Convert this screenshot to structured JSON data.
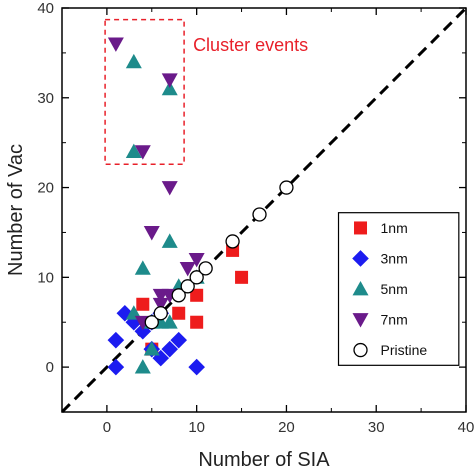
{
  "chart_data": {
    "type": "scatter",
    "xlabel": "Number of SIA",
    "ylabel": "Number of Vac",
    "xlim": [
      -5,
      40
    ],
    "ylim": [
      -5,
      40
    ],
    "xticks": [
      "0",
      "10",
      "20",
      "30",
      "40"
    ],
    "yticks": [
      "0",
      "10",
      "20",
      "30",
      "40"
    ],
    "grid": false,
    "legend_position": "right",
    "reference_line": {
      "type": "y=x",
      "style": "dashed",
      "color": "#000000"
    },
    "annotation": {
      "text": "Cluster events",
      "color": "#e8202a"
    },
    "series": [
      {
        "name": "1nm",
        "marker": "square",
        "color": "#ee1c1c",
        "points": [
          [
            4,
            7
          ],
          [
            5,
            2
          ],
          [
            8,
            6
          ],
          [
            10,
            8
          ],
          [
            10,
            5
          ],
          [
            14,
            13
          ],
          [
            15,
            10
          ]
        ]
      },
      {
        "name": "3nm",
        "marker": "diamond",
        "color": "#1c1cf0",
        "points": [
          [
            1,
            0
          ],
          [
            1,
            3
          ],
          [
            2,
            6
          ],
          [
            3,
            5
          ],
          [
            4,
            4
          ],
          [
            5,
            5
          ],
          [
            5,
            2
          ],
          [
            6,
            1
          ],
          [
            7,
            2
          ],
          [
            8,
            3
          ],
          [
            10,
            0
          ],
          [
            6,
            6
          ]
        ]
      },
      {
        "name": "5nm",
        "marker": "triangle-up",
        "color": "#1e8b8b",
        "points": [
          [
            3,
            34
          ],
          [
            3,
            24
          ],
          [
            7,
            31
          ],
          [
            7,
            14
          ],
          [
            4,
            11
          ],
          [
            3,
            6
          ],
          [
            4,
            0
          ],
          [
            5,
            2
          ],
          [
            5,
            5
          ],
          [
            6,
            5
          ],
          [
            7,
            5
          ],
          [
            8,
            9
          ],
          [
            10,
            10
          ]
        ]
      },
      {
        "name": "7nm",
        "marker": "triangle-down",
        "color": "#6a1a8a",
        "points": [
          [
            1,
            36
          ],
          [
            7,
            32
          ],
          [
            4,
            24
          ],
          [
            7,
            20
          ],
          [
            5,
            15
          ],
          [
            9,
            11
          ],
          [
            10,
            12
          ],
          [
            6,
            8
          ],
          [
            7,
            8
          ],
          [
            4,
            5
          ],
          [
            6,
            7
          ]
        ]
      },
      {
        "name": "Pristine",
        "marker": "circle-open",
        "color": "#000000",
        "points": [
          [
            5,
            5
          ],
          [
            6,
            6
          ],
          [
            8,
            8
          ],
          [
            9,
            9
          ],
          [
            10,
            10
          ],
          [
            11,
            11
          ],
          [
            14,
            14
          ],
          [
            17,
            17
          ],
          [
            20,
            20
          ]
        ]
      }
    ]
  }
}
